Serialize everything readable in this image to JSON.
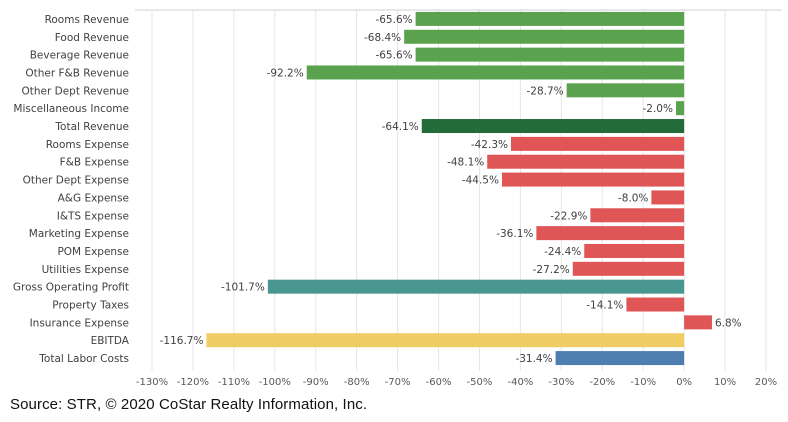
{
  "chart_data": {
    "type": "bar",
    "orientation": "horizontal",
    "title": "",
    "xlabel": "",
    "ylabel": "",
    "xlim": [
      -130,
      20
    ],
    "xtick_step": 10,
    "xtick_labels": [
      "-130%",
      "-120%",
      "-110%",
      "-100%",
      "-90%",
      "-80%",
      "-70%",
      "-60%",
      "-50%",
      "-40%",
      "-30%",
      "-20%",
      "-10%",
      "0%",
      "10%",
      "20%"
    ],
    "grid": true,
    "legend": "none",
    "categories": [
      "Rooms Revenue",
      "Food Revenue",
      "Beverage Revenue",
      "Other F&B Revenue",
      "Other Dept Revenue",
      "Miscellaneous Income",
      "Total Revenue",
      "Rooms Expense",
      "F&B Expense",
      "Other Dept Expense",
      "A&G Expense",
      "I&TS Expense",
      "Marketing Expense",
      "POM Expense",
      "Utilities Expense",
      "Gross Operating Profit",
      "Property Taxes",
      "Insurance Expense",
      "EBITDA",
      "Total Labor Costs"
    ],
    "values": [
      -65.6,
      -68.4,
      -65.6,
      -92.2,
      -28.7,
      -2.0,
      -64.1,
      -42.3,
      -48.1,
      -44.5,
      -8.0,
      -22.9,
      -36.1,
      -24.4,
      -27.2,
      -101.7,
      -14.1,
      6.8,
      -116.7,
      -31.4
    ],
    "value_labels": [
      "-65.6%",
      "-68.4%",
      "-65.6%",
      "-92.2%",
      "-28.7%",
      "-2.0%",
      "-64.1%",
      "-42.3%",
      "-48.1%",
      "-44.5%",
      "-8.0%",
      "-22.9%",
      "-36.1%",
      "-24.4%",
      "-27.2%",
      "-101.7%",
      "-14.1%",
      "6.8%",
      "-116.7%",
      "-31.4%"
    ],
    "bar_colors": [
      "#5BA24F",
      "#5BA24F",
      "#5BA24F",
      "#5BA24F",
      "#5BA24F",
      "#5BA24F",
      "#236B38",
      "#E05555",
      "#E05555",
      "#E05555",
      "#E05555",
      "#E05555",
      "#E05555",
      "#E05555",
      "#E05555",
      "#4A9690",
      "#E05555",
      "#E05555",
      "#F0CD62",
      "#4E7EB0"
    ]
  },
  "source_note": "Source: STR, © 2020 CoStar Realty Information, Inc."
}
